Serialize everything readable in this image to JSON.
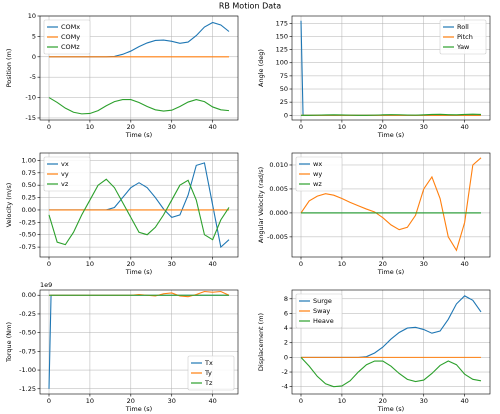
{
  "title": "RB Motion Data",
  "chart_data": [
    {
      "type": "line",
      "ylabel": "Position (m)",
      "xlabel": "Time (s)",
      "legend": "upper left",
      "grid": true,
      "x": [
        0,
        2,
        4,
        6,
        8,
        10,
        12,
        14,
        16,
        18,
        20,
        22,
        24,
        26,
        28,
        30,
        32,
        34,
        36,
        38,
        40,
        42,
        44
      ],
      "xlim": [
        -2.2,
        46.2
      ],
      "xticks": [
        0,
        10,
        20,
        30,
        40
      ],
      "ylim": [
        -15.5,
        10
      ],
      "yticks": [
        -15,
        -10,
        -5,
        0,
        5,
        10
      ],
      "series": [
        {
          "name": "COMx",
          "color": "#1f77b4",
          "values": [
            0,
            0,
            0,
            0,
            0,
            0,
            0,
            0,
            0.1,
            0.6,
            1.4,
            2.5,
            3.4,
            4.0,
            4.1,
            3.8,
            3.3,
            3.6,
            5.2,
            7.3,
            8.4,
            7.8,
            6.2
          ]
        },
        {
          "name": "COMy",
          "color": "#ff7f0e",
          "values": [
            0,
            0,
            0,
            0,
            0,
            0,
            0,
            0,
            0,
            0,
            0,
            0,
            0,
            0,
            0,
            0,
            0,
            0,
            0,
            0,
            0,
            0,
            0
          ]
        },
        {
          "name": "COMz",
          "color": "#2ca02c",
          "values": [
            -10,
            -11.2,
            -12.6,
            -13.6,
            -14,
            -13.9,
            -13.2,
            -12,
            -11,
            -10.5,
            -10.5,
            -11.2,
            -12.2,
            -13,
            -13.3,
            -13.1,
            -12.2,
            -11.1,
            -10.5,
            -11,
            -12.3,
            -13,
            -13.2
          ]
        }
      ]
    },
    {
      "type": "line",
      "ylabel": "Angle (deg)",
      "xlabel": "Time (s)",
      "legend": "upper right",
      "grid": true,
      "x": [
        0,
        0.5,
        2,
        4,
        6,
        8,
        10,
        12,
        14,
        16,
        18,
        20,
        22,
        24,
        26,
        28,
        30,
        32,
        34,
        36,
        38,
        40,
        42,
        44
      ],
      "xlim": [
        -2.2,
        46.2
      ],
      "xticks": [
        0,
        10,
        20,
        30,
        40
      ],
      "ylim": [
        -9,
        189
      ],
      "yticks": [
        0,
        25,
        50,
        75,
        100,
        125,
        150,
        175
      ],
      "series": [
        {
          "name": "Roll",
          "color": "#1f77b4",
          "values": [
            180,
            0,
            0,
            0,
            0,
            0,
            0,
            0,
            0,
            0,
            0,
            0,
            0,
            0,
            0,
            0,
            0,
            0,
            0,
            0,
            0,
            0,
            0,
            0
          ]
        },
        {
          "name": "Pitch",
          "color": "#ff7f0e",
          "values": [
            0,
            0,
            0,
            0,
            0,
            0,
            0,
            0,
            0,
            0,
            0,
            0,
            0,
            0,
            0,
            0,
            0,
            0,
            0,
            0,
            0,
            0,
            0,
            0
          ]
        },
        {
          "name": "Yaw",
          "color": "#2ca02c",
          "values": [
            0,
            0,
            0,
            0.3,
            0.6,
            0.8,
            0.6,
            0.3,
            0,
            0,
            0.3,
            0.8,
            1.2,
            1.0,
            0.5,
            0.3,
            0.8,
            1.5,
            1.8,
            1.2,
            0.8,
            1.5,
            2.0,
            1.5
          ]
        }
      ]
    },
    {
      "type": "line",
      "ylabel": "Velocity (m/s)",
      "xlabel": "Time (s)",
      "legend": "upper left",
      "grid": true,
      "x": [
        0,
        2,
        4,
        6,
        8,
        10,
        12,
        14,
        16,
        18,
        20,
        22,
        24,
        26,
        28,
        30,
        32,
        34,
        36,
        38,
        40,
        42,
        44
      ],
      "xlim": [
        -2.2,
        46.2
      ],
      "xticks": [
        0,
        10,
        20,
        30,
        40
      ],
      "ylim": [
        -0.95,
        1.15
      ],
      "yticks": [
        {
          "value": -0.75,
          "label": "-0.75"
        },
        {
          "value": -0.5,
          "label": "-0.50"
        },
        {
          "value": -0.25,
          "label": "-0.25"
        },
        {
          "value": 0,
          "label": "0.00"
        },
        {
          "value": 0.25,
          "label": "0.25"
        },
        {
          "value": 0.5,
          "label": "0.50"
        },
        {
          "value": 0.75,
          "label": "0.75"
        },
        {
          "value": 1,
          "label": "1.00"
        }
      ],
      "series": [
        {
          "name": "vx",
          "color": "#1f77b4",
          "values": [
            0,
            0,
            0,
            0,
            0,
            0,
            0,
            0,
            0.05,
            0.25,
            0.45,
            0.55,
            0.45,
            0.25,
            0.02,
            -0.15,
            -0.1,
            0.3,
            0.9,
            0.95,
            0.1,
            -0.75,
            -0.6
          ]
        },
        {
          "name": "vy",
          "color": "#ff7f0e",
          "values": [
            0,
            0,
            0,
            0,
            0,
            0,
            0,
            0,
            0,
            0,
            0,
            0,
            0,
            0,
            0,
            0,
            0,
            0,
            0,
            0,
            0,
            0,
            0
          ]
        },
        {
          "name": "vz",
          "color": "#2ca02c",
          "values": [
            -0.1,
            -0.65,
            -0.7,
            -0.45,
            -0.1,
            0.2,
            0.5,
            0.62,
            0.45,
            0.15,
            -0.15,
            -0.45,
            -0.5,
            -0.35,
            -0.1,
            0.2,
            0.5,
            0.6,
            0.2,
            -0.5,
            -0.6,
            -0.2,
            0.05
          ]
        }
      ]
    },
    {
      "type": "line",
      "ylabel": "Angular Velocity (rad/s)",
      "xlabel": "Time (s)",
      "legend": "upper left",
      "grid": true,
      "x": [
        0,
        2,
        4,
        6,
        8,
        10,
        12,
        14,
        16,
        18,
        20,
        22,
        24,
        26,
        28,
        30,
        32,
        34,
        36,
        38,
        40,
        42,
        44
      ],
      "xlim": [
        -2.2,
        46.2
      ],
      "xticks": [
        0,
        10,
        20,
        30,
        40
      ],
      "ylim": [
        -0.0092,
        0.0125
      ],
      "yticks": [
        {
          "value": -0.005,
          "label": "-0.005"
        },
        {
          "value": 0,
          "label": "0.000"
        },
        {
          "value": 0.005,
          "label": "0.005"
        },
        {
          "value": 0.01,
          "label": "0.010"
        }
      ],
      "series": [
        {
          "name": "wx",
          "color": "#1f77b4",
          "values": [
            0,
            0,
            0,
            0,
            0,
            0,
            0,
            0,
            0,
            0,
            0,
            0,
            0,
            0,
            0,
            0,
            0,
            0,
            0,
            0,
            0,
            0,
            0
          ]
        },
        {
          "name": "wy",
          "color": "#ff7f0e",
          "values": [
            0,
            0.0025,
            0.0035,
            0.004,
            0.0037,
            0.003,
            0.0022,
            0.0015,
            0.0008,
            0.0002,
            -0.001,
            -0.0025,
            -0.0035,
            -0.003,
            -0.0005,
            0.005,
            0.0075,
            0.003,
            -0.005,
            -0.0078,
            -0.002,
            0.01,
            0.0115
          ]
        },
        {
          "name": "wz",
          "color": "#2ca02c",
          "values": [
            0,
            0,
            0,
            0,
            0,
            0,
            0,
            0,
            0,
            0,
            0,
            0,
            0,
            0,
            0,
            0,
            0,
            0,
            0,
            0,
            0,
            0,
            0
          ]
        }
      ]
    },
    {
      "type": "line",
      "ylabel": "Torque (Nm)",
      "xlabel": "Time (s)",
      "legend": "lower right",
      "grid": true,
      "y_offset_label": "1e9",
      "x": [
        0,
        0.5,
        2,
        4,
        6,
        8,
        10,
        12,
        14,
        16,
        18,
        20,
        22,
        24,
        26,
        28,
        30,
        32,
        34,
        36,
        38,
        40,
        42,
        44
      ],
      "xlim": [
        -2.2,
        46.2
      ],
      "xticks": [
        0,
        10,
        20,
        30,
        40
      ],
      "ylim": [
        -1320000000,
        70000000
      ],
      "yticks": [
        {
          "value": -1250000000,
          "label": "-1.25"
        },
        {
          "value": -1000000000,
          "label": "-1.00"
        },
        {
          "value": -750000000,
          "label": "-0.75"
        },
        {
          "value": -500000000,
          "label": "-0.50"
        },
        {
          "value": -250000000,
          "label": "-0.25"
        },
        {
          "value": 0,
          "label": "0.00"
        }
      ],
      "series": [
        {
          "name": "Tx",
          "color": "#1f77b4",
          "values": [
            -1250000000,
            0,
            0,
            0,
            0,
            0,
            0,
            0,
            0,
            0,
            0,
            0,
            0,
            0,
            0,
            0,
            0,
            0,
            0,
            0,
            0,
            0,
            0,
            0
          ]
        },
        {
          "name": "Ty",
          "color": "#ff7f0e",
          "values": [
            0,
            0,
            0,
            0,
            0,
            0,
            0,
            0,
            0,
            0,
            0,
            0,
            10000000,
            0,
            -10000000,
            20000000,
            30000000,
            -10000000,
            -20000000,
            10000000,
            50000000,
            40000000,
            50000000,
            0
          ]
        },
        {
          "name": "Tz",
          "color": "#2ca02c",
          "values": [
            0,
            0,
            0,
            0,
            0,
            0,
            0,
            0,
            0,
            0,
            0,
            0,
            0,
            0,
            0,
            0,
            0,
            0,
            0,
            0,
            0,
            0,
            0,
            0
          ]
        }
      ]
    },
    {
      "type": "line",
      "ylabel": "Displacement (m)",
      "xlabel": "Time (s)",
      "legend": "upper left",
      "grid": true,
      "x": [
        0,
        2,
        4,
        6,
        8,
        10,
        12,
        14,
        16,
        18,
        20,
        22,
        24,
        26,
        28,
        30,
        32,
        34,
        36,
        38,
        40,
        42,
        44
      ],
      "xlim": [
        -2.2,
        46.2
      ],
      "xticks": [
        0,
        10,
        20,
        30,
        40
      ],
      "ylim": [
        -5,
        9.2
      ],
      "yticks": [
        -4,
        -2,
        0,
        2,
        4,
        6,
        8
      ],
      "series": [
        {
          "name": "Surge",
          "color": "#1f77b4",
          "values": [
            0,
            0,
            0,
            0,
            0,
            0,
            0,
            0,
            0.1,
            0.6,
            1.4,
            2.5,
            3.4,
            4.0,
            4.1,
            3.8,
            3.3,
            3.6,
            5.2,
            7.3,
            8.4,
            7.8,
            6.2
          ]
        },
        {
          "name": "Sway",
          "color": "#ff7f0e",
          "values": [
            0,
            0,
            0,
            0,
            0,
            0,
            0,
            0,
            0,
            0,
            0,
            0,
            0,
            0,
            0,
            0,
            0,
            0,
            0,
            0,
            0,
            0,
            0
          ]
        },
        {
          "name": "Heave",
          "color": "#2ca02c",
          "values": [
            0,
            -1.2,
            -2.6,
            -3.6,
            -4.0,
            -3.9,
            -3.2,
            -2.0,
            -1.0,
            -0.5,
            -0.5,
            -1.2,
            -2.2,
            -3.0,
            -3.3,
            -3.1,
            -2.2,
            -1.1,
            -0.5,
            -1.0,
            -2.3,
            -3.0,
            -3.2
          ]
        }
      ]
    }
  ]
}
